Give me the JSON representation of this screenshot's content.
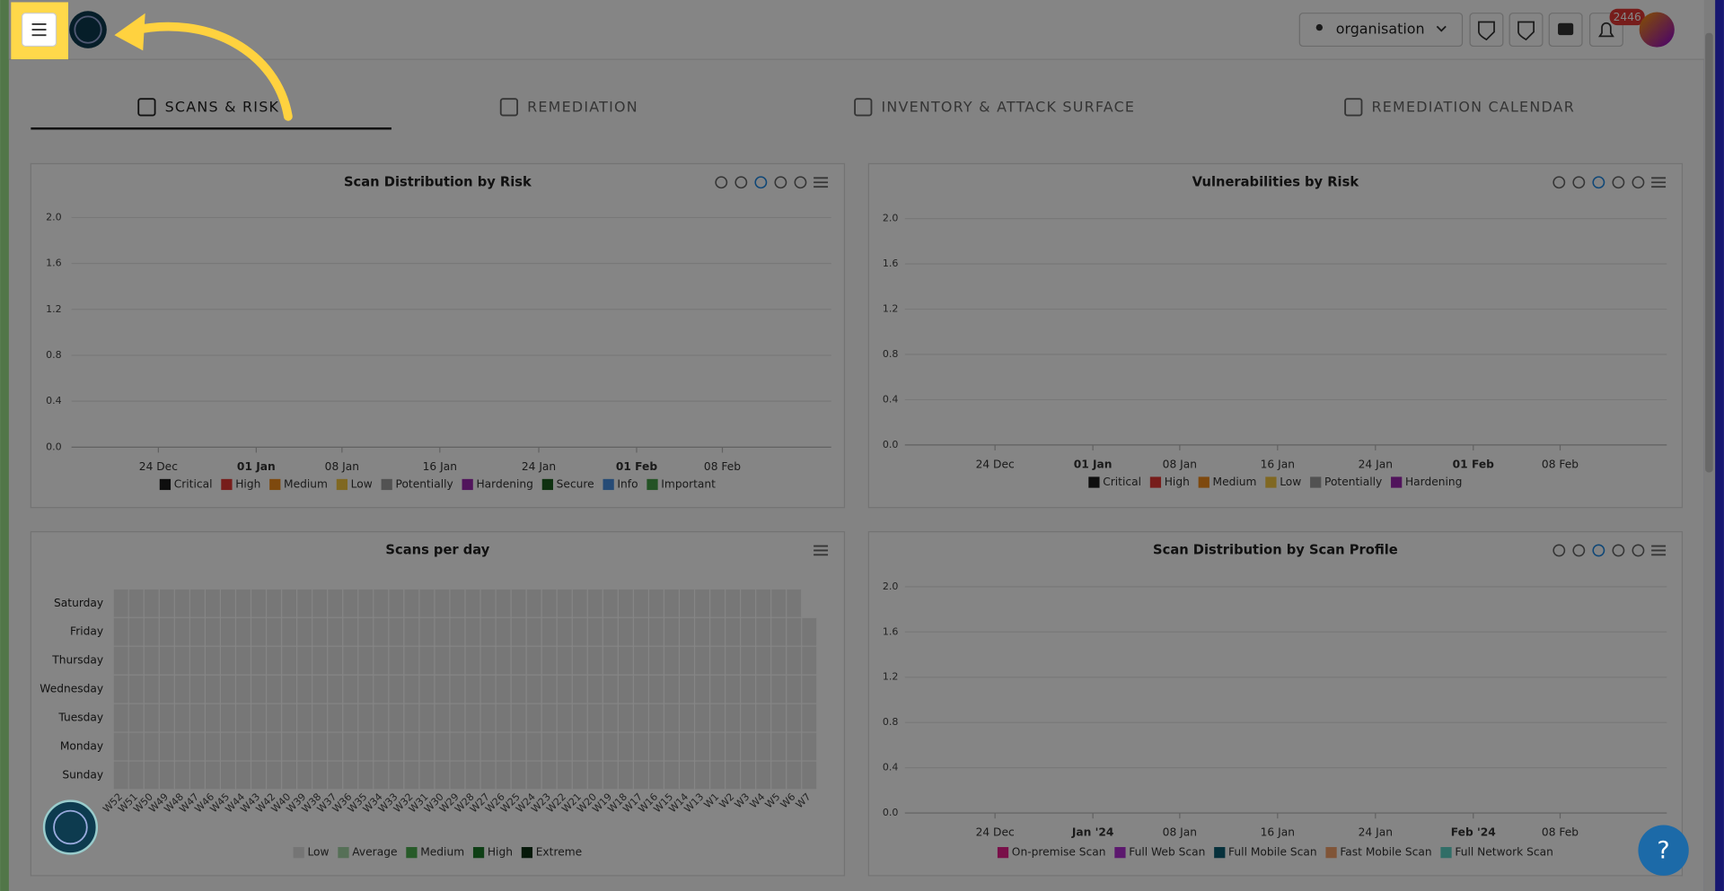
{
  "header": {
    "org": "organisation",
    "notifications": "2446"
  },
  "tabs": [
    "SCANS & RISK",
    "REMEDIATION",
    "INVENTORY & ATTACK SURFACE",
    "REMEDIATION CALENDAR"
  ],
  "charts": [
    {
      "title": "Scan Distribution by Risk",
      "yticks": [
        {
          "value": 0,
          "label": "0.0"
        },
        {
          "value": 0.4,
          "label": "0.4"
        },
        {
          "value": 0.8,
          "label": "0.8"
        },
        {
          "value": 1.2,
          "label": "1.2"
        },
        {
          "value": 1.6,
          "label": "1.6"
        },
        {
          "value": 2,
          "label": "2.0"
        }
      ],
      "xticks": [
        "24 Dec",
        "01 Jan",
        "08 Jan",
        "16 Jan",
        "24 Jan",
        "01 Feb",
        "08 Feb"
      ],
      "legend": [
        {
          "name": "Critical",
          "color": "#1b1b1b"
        },
        {
          "name": "High",
          "color": "#e53935"
        },
        {
          "name": "Medium",
          "color": "#f28c1c"
        },
        {
          "name": "Low",
          "color": "#f5c842"
        },
        {
          "name": "Potentially",
          "color": "#9e9e9e"
        },
        {
          "name": "Hardening",
          "color": "#9c27b0"
        },
        {
          "name": "Secure",
          "color": "#1b5e20"
        },
        {
          "name": "Info",
          "color": "#4a90e2"
        },
        {
          "name": "Important",
          "color": "#43a047"
        }
      ]
    },
    {
      "title": "Vulnerabilities by Risk",
      "yticks": [
        {
          "value": 0,
          "label": "0.0"
        },
        {
          "value": 0.4,
          "label": "0.4"
        },
        {
          "value": 0.8,
          "label": "0.8"
        },
        {
          "value": 1.2,
          "label": "1.2"
        },
        {
          "value": 1.6,
          "label": "1.6"
        },
        {
          "value": 2,
          "label": "2.0"
        }
      ],
      "xticks": [
        "24 Dec",
        "01 Jan",
        "08 Jan",
        "16 Jan",
        "24 Jan",
        "01 Feb",
        "08 Feb"
      ],
      "legend": [
        {
          "name": "Critical",
          "color": "#1b1b1b"
        },
        {
          "name": "High",
          "color": "#e53935"
        },
        {
          "name": "Medium",
          "color": "#f28c1c"
        },
        {
          "name": "Low",
          "color": "#f5c842"
        },
        {
          "name": "Potentially",
          "color": "#9e9e9e"
        },
        {
          "name": "Hardening",
          "color": "#9c27b0"
        }
      ]
    },
    {
      "title": "Scans per day",
      "rows": [
        "Saturday",
        "Friday",
        "Thursday",
        "Wednesday",
        "Tuesday",
        "Monday",
        "Sunday"
      ],
      "columns": [
        "W52",
        "W51",
        "W50",
        "W49",
        "W48",
        "W47",
        "W46",
        "W45",
        "W44",
        "W43",
        "W42",
        "W40",
        "W39",
        "W38",
        "W37",
        "W36",
        "W35",
        "W34",
        "W33",
        "W32",
        "W31",
        "W30",
        "W29",
        "W28",
        "W27",
        "W26",
        "W25",
        "W24",
        "W23",
        "W22",
        "W21",
        "W20",
        "W19",
        "W18",
        "W17",
        "W16",
        "W15",
        "W14",
        "W13",
        "W1",
        "W2",
        "W3",
        "W4",
        "W5",
        "W6",
        "W7"
      ],
      "legend": [
        {
          "name": "Low",
          "color": "#e0e0e0"
        },
        {
          "name": "Average",
          "color": "#a5d6a7"
        },
        {
          "name": "Medium",
          "color": "#4caf50"
        },
        {
          "name": "High",
          "color": "#1b7a2a"
        },
        {
          "name": "Extreme",
          "color": "#0b2e12"
        }
      ]
    },
    {
      "title": "Scan Distribution by Scan Profile",
      "yticks": [
        {
          "value": 0,
          "label": "0.0"
        },
        {
          "value": 0.4,
          "label": "0.4"
        },
        {
          "value": 0.8,
          "label": "0.8"
        },
        {
          "value": 1.2,
          "label": "1.2"
        },
        {
          "value": 1.6,
          "label": "1.6"
        },
        {
          "value": 2,
          "label": "2.0"
        }
      ],
      "xticks": [
        "24 Dec",
        "Jan '24",
        "08 Jan",
        "16 Jan",
        "24 Jan",
        "Feb '24",
        "08 Feb"
      ],
      "legend": [
        {
          "name": "On-premise Scan",
          "color": "#e91e8c"
        },
        {
          "name": "Full Web Scan",
          "color": "#b02fd4"
        },
        {
          "name": "Full Mobile Scan",
          "color": "#0d5f73"
        },
        {
          "name": "Fast Mobile Scan",
          "color": "#f5a36b"
        },
        {
          "name": "Full Network Scan",
          "color": "#5fd3c5"
        }
      ]
    }
  ],
  "help": "?"
}
